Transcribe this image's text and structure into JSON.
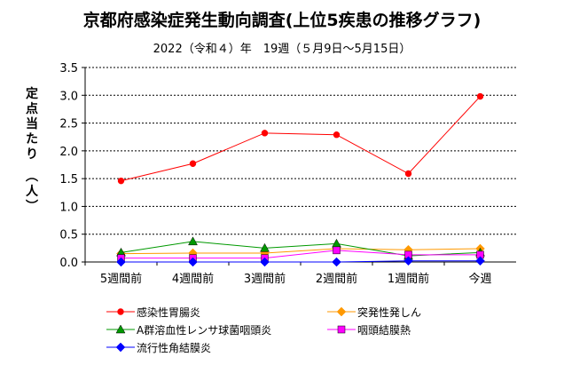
{
  "title": "京都府感染症発生動向調査(上位5疾患の推移グラフ)",
  "subtitle": "2022（令和４）年　19週（５月9日～5月15日）",
  "chart_data": {
    "type": "line",
    "ylabel": "定点当たり（人）",
    "ylim": [
      0,
      3.5
    ],
    "yticks": [
      "0.0",
      "0.5",
      "1.0",
      "1.5",
      "2.0",
      "2.5",
      "3.0",
      "3.5"
    ],
    "grid": true,
    "legend_position": "bottom",
    "categories": [
      "5週間前",
      "4週間前",
      "3週間前",
      "2週間前",
      "1週間前",
      "今週"
    ],
    "series": [
      {
        "name": "感染性胃腸炎",
        "color": "#ff0000",
        "marker": "circle",
        "values": [
          1.46,
          1.77,
          2.32,
          2.29,
          1.59,
          2.98
        ]
      },
      {
        "name": "突発性発しん",
        "color": "#ff9900",
        "marker": "diamond",
        "values": [
          0.15,
          0.16,
          0.16,
          0.24,
          0.22,
          0.24
        ]
      },
      {
        "name": "A群溶血性レンサ球菌咽頭炎",
        "color": "#009900",
        "marker": "triangle",
        "values": [
          0.17,
          0.37,
          0.25,
          0.33,
          0.11,
          0.17
        ]
      },
      {
        "name": "咽頭結膜熱",
        "color": "#ff00ff",
        "marker": "square",
        "values": [
          0.07,
          0.07,
          0.07,
          0.21,
          0.13,
          0.13
        ]
      },
      {
        "name": "流行性角結膜炎",
        "color": "#0000ff",
        "marker": "diamond",
        "values": [
          0.0,
          0.0,
          0.0,
          0.0,
          0.02,
          0.02
        ]
      }
    ]
  }
}
